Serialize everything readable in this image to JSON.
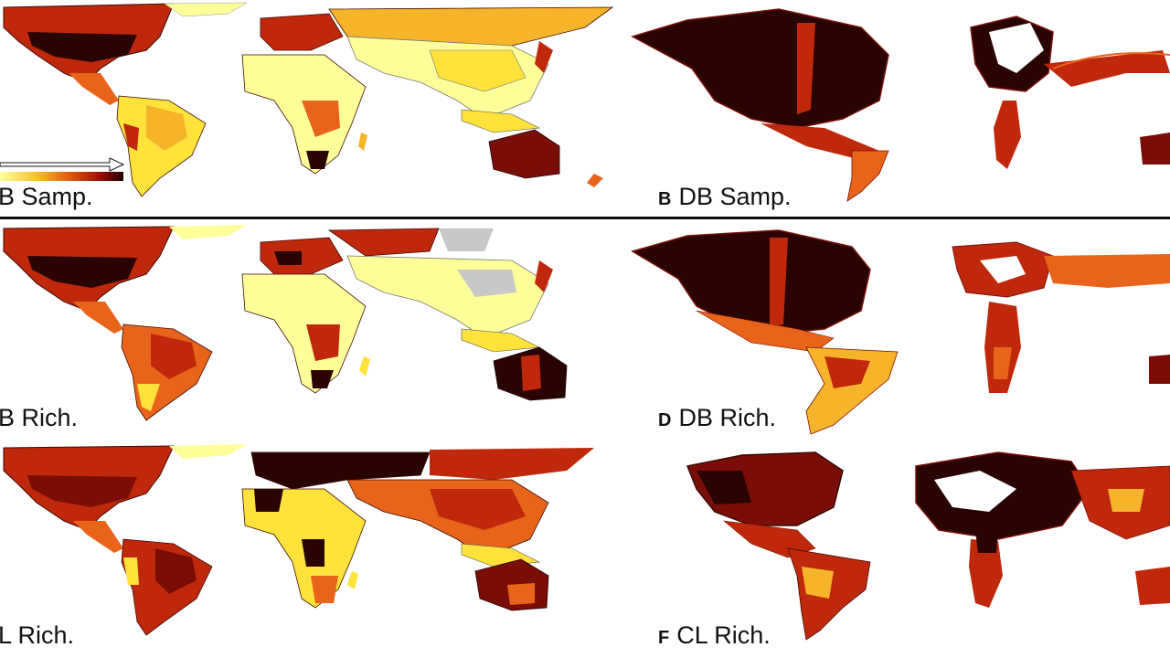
{
  "panels": [
    {
      "letter": "",
      "title": "B Samp."
    },
    {
      "letter": "B",
      "title": "DB Samp."
    },
    {
      "letter": "",
      "title": "B Rich."
    },
    {
      "letter": "D",
      "title": "DB Rich."
    },
    {
      "letter": "",
      "title": "L Rich."
    },
    {
      "letter": "F",
      "title": "CL Rich."
    }
  ],
  "legend": {
    "icon": "arrow-right-icon",
    "gradient": [
      "#ffffa0",
      "#f5c030",
      "#e06010",
      "#a01008",
      "#200000"
    ]
  },
  "palette": {
    "pale": "#ffff9a",
    "yellow": "#ffe23a",
    "gold": "#f6b42a",
    "orange": "#e8641a",
    "red": "#c0280c",
    "maroon": "#7a0e06",
    "dark": "#2a0402",
    "nodata": "#c8c8c8"
  }
}
